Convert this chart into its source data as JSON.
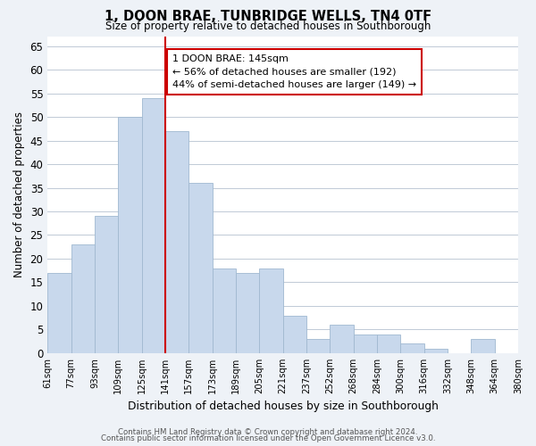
{
  "title": "1, DOON BRAE, TUNBRIDGE WELLS, TN4 0TF",
  "subtitle": "Size of property relative to detached houses in Southborough",
  "xlabel": "Distribution of detached houses by size in Southborough",
  "ylabel": "Number of detached properties",
  "bar_color": "#c8d8ec",
  "bar_edge_color": "#a0b8d0",
  "tick_labels": [
    "61sqm",
    "77sqm",
    "93sqm",
    "109sqm",
    "125sqm",
    "141sqm",
    "157sqm",
    "173sqm",
    "189sqm",
    "205sqm",
    "221sqm",
    "237sqm",
    "252sqm",
    "268sqm",
    "284sqm",
    "300sqm",
    "316sqm",
    "332sqm",
    "348sqm",
    "364sqm",
    "380sqm"
  ],
  "values": [
    17,
    23,
    29,
    50,
    54,
    47,
    36,
    18,
    17,
    18,
    8,
    3,
    6,
    4,
    4,
    2,
    1,
    0,
    3,
    0
  ],
  "ylim": [
    0,
    67
  ],
  "yticks": [
    0,
    5,
    10,
    15,
    20,
    25,
    30,
    35,
    40,
    45,
    50,
    55,
    60,
    65
  ],
  "vline_x": 5.0,
  "vline_color": "#cc0000",
  "annotation_title": "1 DOON BRAE: 145sqm",
  "annotation_line1": "← 56% of detached houses are smaller (192)",
  "annotation_line2": "44% of semi-detached houses are larger (149) →",
  "annotation_box_color": "#ffffff",
  "annotation_box_edge": "#cc0000",
  "footer1": "Contains HM Land Registry data © Crown copyright and database right 2024.",
  "footer2": "Contains public sector information licensed under the Open Government Licence v3.0.",
  "background_color": "#eef2f7",
  "plot_bg_color": "#ffffff",
  "grid_color": "#c0cad6"
}
